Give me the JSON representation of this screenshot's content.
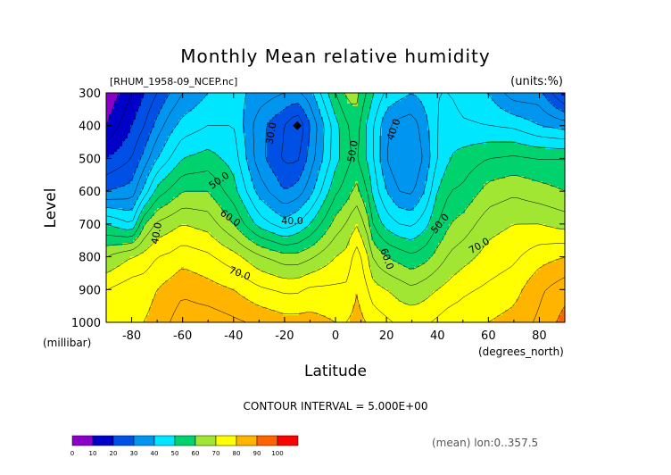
{
  "chart_data": {
    "type": "heatmap",
    "title": "Monthly Mean relative humidity",
    "subtitle_left": "[RHUM_1958-09_NCEP.nc]",
    "subtitle_right": "(units:%)",
    "xlabel": "Latitude",
    "x_units": "(degrees_north)",
    "ylabel": "Level",
    "y_units": "(millibar)",
    "x_ticks": [
      "-80",
      "-60",
      "-40",
      "-20",
      "0",
      "20",
      "40",
      "60",
      "80"
    ],
    "x_tick_values": [
      -80,
      -60,
      -40,
      -20,
      0,
      20,
      40,
      60,
      80
    ],
    "y_ticks": [
      "300",
      "400",
      "500",
      "600",
      "700",
      "800",
      "900",
      "1000"
    ],
    "y_tick_values": [
      300,
      400,
      500,
      600,
      700,
      800,
      900,
      1000
    ],
    "xlim": [
      -90,
      90
    ],
    "ylim": [
      300,
      1000
    ],
    "contour_interval_text": "CONTOUR INTERVAL = 5.000E+00",
    "footer_note": "(mean) lon:0..357.5",
    "contour_labels": [
      "30.0",
      "40.0",
      "40.0",
      "40.0",
      "50.0",
      "50.0",
      "50.0",
      "60.0",
      "60.0",
      "70.0",
      "70.0"
    ],
    "colorbar": {
      "labels": [
        "0",
        "10",
        "20",
        "30",
        "40",
        "50",
        "60",
        "70",
        "80",
        "90",
        "100"
      ],
      "colors": [
        "#8a00c8",
        "#0000c8",
        "#0050e6",
        "#0096f0",
        "#00e6ff",
        "#00d26e",
        "#a0e632",
        "#ffff00",
        "#ffb400",
        "#ff6400",
        "#ff0000"
      ]
    },
    "profiles": {
      "latitudes": [
        -90,
        -80,
        -75,
        -70,
        -65,
        -60,
        -50,
        -40,
        -30,
        -20,
        -15,
        -10,
        0,
        5,
        8,
        12,
        15,
        20,
        25,
        30,
        35,
        40,
        45,
        50,
        60,
        70,
        80,
        90
      ],
      "levels": [
        300,
        400,
        500,
        600,
        700,
        800,
        900,
        1000
      ],
      "rh_percent": [
        [
          5,
          10,
          20,
          30,
          50,
          65,
          75,
          80
        ],
        [
          15,
          20,
          25,
          32,
          45,
          70,
          78,
          80
        ],
        [
          20,
          25,
          32,
          42,
          60,
          72,
          78,
          80
        ],
        [
          25,
          32,
          40,
          52,
          66,
          75,
          80,
          82
        ],
        [
          30,
          38,
          45,
          56,
          68,
          76,
          82,
          85
        ],
        [
          35,
          42,
          50,
          60,
          70,
          78,
          84,
          88
        ],
        [
          40,
          45,
          52,
          60,
          68,
          76,
          82,
          88
        ],
        [
          42,
          45,
          48,
          52,
          60,
          72,
          80,
          86
        ],
        [
          38,
          32,
          32,
          38,
          48,
          66,
          76,
          84
        ],
        [
          35,
          25,
          24,
          30,
          42,
          62,
          74,
          82
        ],
        [
          34,
          20,
          24,
          32,
          45,
          62,
          74,
          82
        ],
        [
          38,
          30,
          32,
          38,
          50,
          64,
          76,
          82
        ],
        [
          55,
          48,
          48,
          54,
          62,
          70,
          76,
          80
        ],
        [
          62,
          55,
          54,
          58,
          66,
          72,
          76,
          80
        ],
        [
          62,
          58,
          56,
          62,
          70,
          78,
          80,
          82
        ],
        [
          55,
          50,
          50,
          56,
          64,
          72,
          76,
          80
        ],
        [
          50,
          45,
          45,
          48,
          54,
          64,
          72,
          78
        ],
        [
          44,
          36,
          35,
          40,
          48,
          60,
          70,
          76
        ],
        [
          42,
          33,
          30,
          35,
          45,
          58,
          68,
          74
        ],
        [
          40,
          32,
          30,
          34,
          44,
          56,
          66,
          74
        ],
        [
          42,
          38,
          36,
          40,
          48,
          58,
          68,
          74
        ],
        [
          45,
          45,
          45,
          50,
          55,
          62,
          70,
          76
        ],
        [
          45,
          48,
          50,
          55,
          60,
          66,
          72,
          78
        ],
        [
          42,
          46,
          52,
          56,
          62,
          68,
          74,
          78
        ],
        [
          40,
          45,
          55,
          62,
          68,
          72,
          76,
          80
        ],
        [
          32,
          44,
          56,
          64,
          70,
          74,
          78,
          82
        ],
        [
          32,
          40,
          55,
          62,
          70,
          78,
          84,
          86
        ],
        [
          18,
          38,
          55,
          60,
          68,
          80,
          88,
          92
        ]
      ]
    },
    "minimum_marker": {
      "lat": -15,
      "level": 400
    }
  }
}
